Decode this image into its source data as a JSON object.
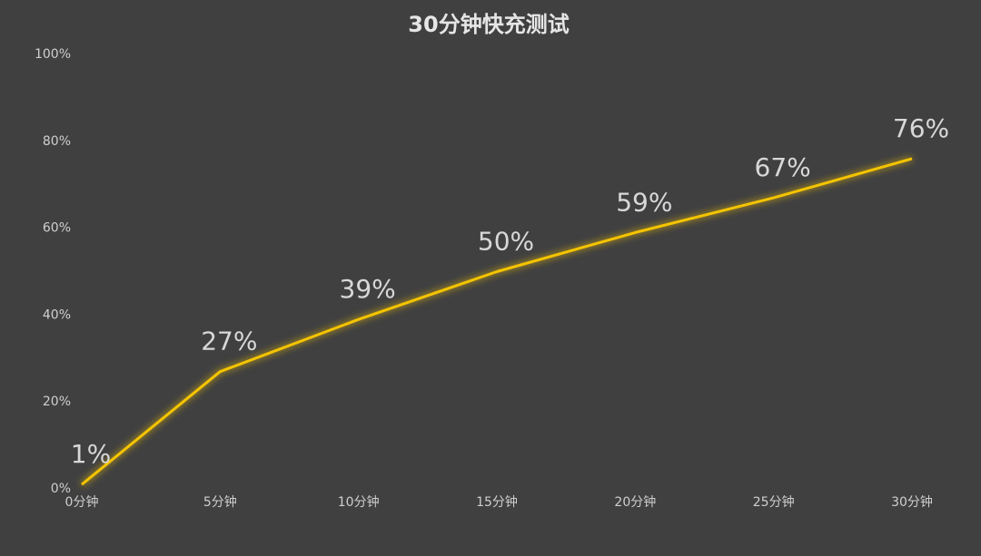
{
  "chart_data": {
    "type": "line",
    "title": "30分钟快充测试",
    "categories": [
      "0分钟",
      "5分钟",
      "10分钟",
      "15分钟",
      "20分钟",
      "25分钟",
      "30分钟"
    ],
    "values": [
      1,
      27,
      39,
      50,
      59,
      67,
      76
    ],
    "value_labels": [
      "1%",
      "27%",
      "39%",
      "50%",
      "59%",
      "67%",
      "76%"
    ],
    "color": "#f5c400",
    "ylim": [
      0,
      100
    ],
    "yticks": [
      {
        "value": 0,
        "label": "0%"
      },
      {
        "value": 20,
        "label": "20%"
      },
      {
        "value": 40,
        "label": "40%"
      },
      {
        "value": 60,
        "label": "60%"
      },
      {
        "value": 80,
        "label": "80%"
      },
      {
        "value": 100,
        "label": "100%"
      }
    ]
  }
}
